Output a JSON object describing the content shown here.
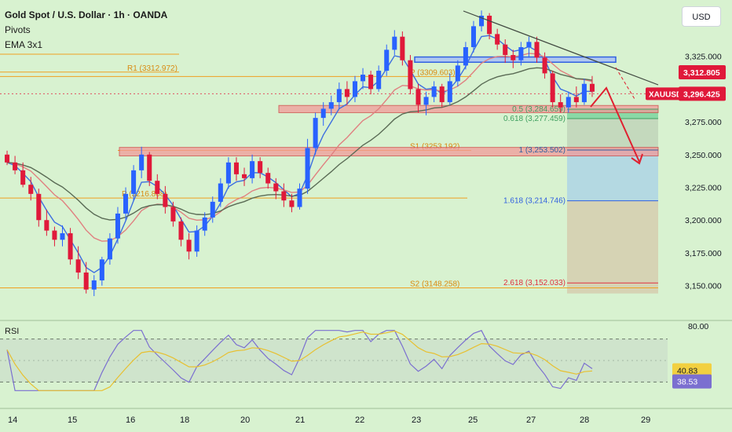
{
  "header": {
    "title": "Gold Spot / U.S. Dollar · 1h · OANDA",
    "indicator_1": "Pivots",
    "indicator_2": "EMA 3x1"
  },
  "currency_button": "USD",
  "rsi_label": "RSI",
  "colors": {
    "background": "#d8f2d0",
    "bull_candle": "#2962ff",
    "bear_candle": "#e0193a",
    "pivot_line": "#f0a020",
    "ema_blue": "#3d6fe0",
    "ema_red": "#e08080",
    "ema_dark": "#5a6b55",
    "rsi_line": "#7b6fd0",
    "rsi_ma": "#e8c030",
    "price_tag": "#e0193a"
  },
  "chart_data": {
    "type": "candlestick",
    "symbol": "XAUUSD",
    "price_axis": {
      "ticks": [
        {
          "label": "3,325.000",
          "value": 3325
        },
        {
          "label": "3,275.000",
          "value": 3275
        },
        {
          "label": "3,250.000",
          "value": 3250
        },
        {
          "label": "3,225.000",
          "value": 3225
        },
        {
          "label": "3,200.000",
          "value": 3200
        },
        {
          "label": "3,175.000",
          "value": 3175
        },
        {
          "label": "3,150.000",
          "value": 3150
        }
      ],
      "range": [
        3127,
        3362
      ]
    },
    "time_axis": {
      "ticks": [
        "14",
        "15",
        "16",
        "18",
        "20",
        "21",
        "22",
        "23",
        "25",
        "27",
        "28",
        "29"
      ]
    },
    "price_tags": [
      {
        "label": "3,312.805",
        "value": 3312.805
      },
      {
        "label": "XAUUSD",
        "value": 3296.425
      },
      {
        "label": "3,296.425",
        "value": 3296.425
      }
    ],
    "pivots": [
      {
        "label": "R1 (3312.972)",
        "value": 3312.972
      },
      {
        "label": "P (3309.603)",
        "value": 3309.603
      },
      {
        "label": "S1 (3253.192)",
        "value": 3253.192
      },
      {
        "label": "P (3216.868)",
        "value": 3216.868
      },
      {
        "label": "S2 (3148.258)",
        "value": 3148.258
      }
    ],
    "fibonacci": [
      {
        "label": "0.5 (3,284.659)",
        "value": 3284.659
      },
      {
        "label": "0.618 (3,277.459)",
        "value": 3277.459
      },
      {
        "label": "1 (3,253.502)",
        "value": 3253.502
      },
      {
        "label": "1.618 (3,214.746)",
        "value": 3214.746
      },
      {
        "label": "2.618 (3,152.033)",
        "value": 3152.033
      }
    ],
    "rsi": {
      "axis_label": "80.00",
      "upper_band": 70,
      "lower_band": 30,
      "value_labels": [
        "40.83",
        "38.53"
      ],
      "rsi_value": 38.53,
      "rsi_ma_value": 40.83
    },
    "candles": [
      [
        3250,
        3253,
        3242,
        3244
      ],
      [
        3244,
        3249,
        3235,
        3238
      ],
      [
        3238,
        3244,
        3225,
        3227
      ],
      [
        3227,
        3233,
        3215,
        3220
      ],
      [
        3220,
        3224,
        3195,
        3200
      ],
      [
        3200,
        3208,
        3188,
        3192
      ],
      [
        3192,
        3195,
        3180,
        3185
      ],
      [
        3185,
        3196,
        3180,
        3190
      ],
      [
        3190,
        3194,
        3166,
        3170
      ],
      [
        3170,
        3180,
        3155,
        3160
      ],
      [
        3160,
        3168,
        3144,
        3147
      ],
      [
        3147,
        3158,
        3142,
        3154
      ],
      [
        3154,
        3172,
        3150,
        3170
      ],
      [
        3170,
        3190,
        3166,
        3186
      ],
      [
        3186,
        3210,
        3182,
        3205
      ],
      [
        3205,
        3225,
        3200,
        3220
      ],
      [
        3220,
        3242,
        3215,
        3238
      ],
      [
        3238,
        3256,
        3232,
        3250
      ],
      [
        3250,
        3252,
        3226,
        3230
      ],
      [
        3230,
        3235,
        3216,
        3220
      ],
      [
        3220,
        3226,
        3205,
        3210
      ],
      [
        3210,
        3214,
        3195,
        3199
      ],
      [
        3199,
        3202,
        3180,
        3185
      ],
      [
        3185,
        3190,
        3170,
        3176
      ],
      [
        3176,
        3196,
        3172,
        3192
      ],
      [
        3192,
        3206,
        3188,
        3202
      ],
      [
        3202,
        3218,
        3198,
        3214
      ],
      [
        3214,
        3232,
        3210,
        3228
      ],
      [
        3228,
        3248,
        3224,
        3244
      ],
      [
        3244,
        3248,
        3230,
        3235
      ],
      [
        3235,
        3240,
        3226,
        3232
      ],
      [
        3232,
        3250,
        3228,
        3245
      ],
      [
        3245,
        3248,
        3232,
        3236
      ],
      [
        3236,
        3240,
        3224,
        3228
      ],
      [
        3228,
        3232,
        3216,
        3222
      ],
      [
        3222,
        3228,
        3210,
        3215
      ],
      [
        3215,
        3220,
        3206,
        3210
      ],
      [
        3210,
        3228,
        3208,
        3224
      ],
      [
        3224,
        3262,
        3220,
        3255
      ],
      [
        3255,
        3282,
        3250,
        3278
      ],
      [
        3278,
        3290,
        3272,
        3285
      ],
      [
        3285,
        3295,
        3280,
        3290
      ],
      [
        3290,
        3305,
        3285,
        3300
      ],
      [
        3300,
        3306,
        3288,
        3294
      ],
      [
        3294,
        3310,
        3290,
        3306
      ],
      [
        3306,
        3316,
        3300,
        3311
      ],
      [
        3311,
        3314,
        3296,
        3300
      ],
      [
        3300,
        3318,
        3298,
        3314
      ],
      [
        3314,
        3334,
        3310,
        3330
      ],
      [
        3330,
        3345,
        3326,
        3340
      ],
      [
        3340,
        3344,
        3318,
        3322
      ],
      [
        3322,
        3326,
        3296,
        3300
      ],
      [
        3300,
        3304,
        3282,
        3288
      ],
      [
        3288,
        3298,
        3280,
        3294
      ],
      [
        3294,
        3306,
        3290,
        3302
      ],
      [
        3302,
        3304,
        3286,
        3290
      ],
      [
        3290,
        3312,
        3288,
        3306
      ],
      [
        3306,
        3322,
        3302,
        3318
      ],
      [
        3318,
        3336,
        3315,
        3332
      ],
      [
        3332,
        3352,
        3328,
        3348
      ],
      [
        3348,
        3360,
        3344,
        3356
      ],
      [
        3356,
        3358,
        3338,
        3342
      ],
      [
        3342,
        3346,
        3330,
        3334
      ],
      [
        3334,
        3338,
        3320,
        3326
      ],
      [
        3326,
        3330,
        3316,
        3322
      ],
      [
        3322,
        3336,
        3318,
        3332
      ],
      [
        3332,
        3340,
        3324,
        3336
      ],
      [
        3336,
        3340,
        3320,
        3324
      ],
      [
        3324,
        3328,
        3308,
        3312
      ],
      [
        3312,
        3314,
        3286,
        3290
      ],
      [
        3290,
        3296,
        3282,
        3286
      ],
      [
        3286,
        3298,
        3282,
        3294
      ],
      [
        3294,
        3302,
        3286,
        3290
      ],
      [
        3290,
        3308,
        3288,
        3304
      ],
      [
        3304,
        3310,
        3294,
        3298
      ]
    ]
  }
}
